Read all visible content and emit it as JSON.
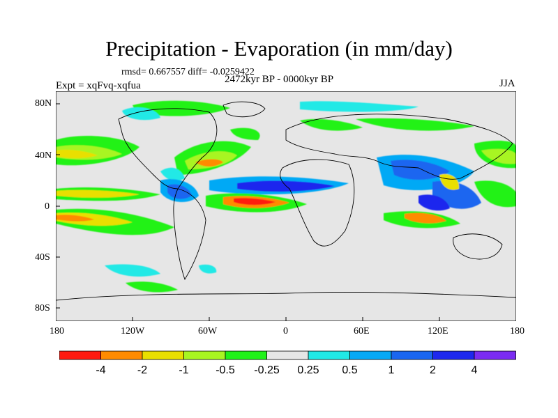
{
  "title": "Precipitation - Evaporation (in mm/day)",
  "stats": "rmsd= 0.667557 diff= -0.0259422",
  "period": "2472kyr BP - 0000kyr BP",
  "experiment": "Expt = xqFvq-xqfua",
  "season": "JJA",
  "axes": {
    "y_ticks": [
      "80N",
      "40N",
      "0",
      "40S",
      "80S"
    ],
    "x_ticks": [
      "180",
      "120W",
      "60W",
      "0",
      "60E",
      "120E",
      "180"
    ]
  },
  "colorbar": {
    "labels": [
      "-4",
      "-2",
      "-1",
      "-0.5",
      "-0.25",
      "0.25",
      "0.5",
      "1",
      "2",
      "4"
    ],
    "colors": [
      "#ff1a10",
      "#ff8b00",
      "#e9df00",
      "#a8f521",
      "#20f218",
      "#e6e6e6",
      "#21e9e6",
      "#06a9f5",
      "#1a66f0",
      "#1e28ee",
      "#7b2cf2"
    ]
  },
  "colors": {
    "land_sea_background": "#e6e6e6",
    "coastline": "#000000"
  }
}
